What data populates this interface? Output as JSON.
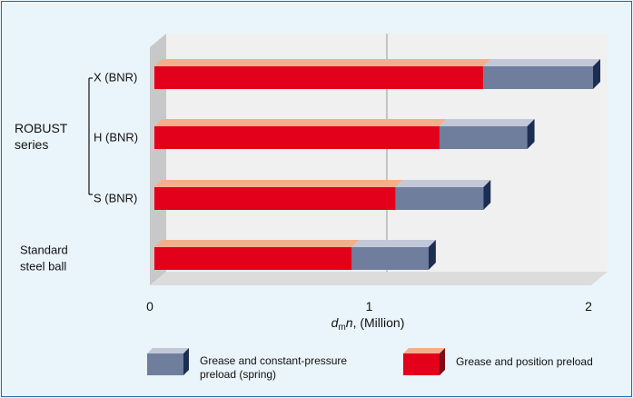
{
  "chart_data": {
    "type": "bar",
    "orientation": "horizontal",
    "stacked": true,
    "categories": [
      "X (BNR)",
      "H (BNR)",
      "S (BNR)",
      "Standard steel ball"
    ],
    "category_lines": [
      [
        "X (BNR)"
      ],
      [
        "H (BNR)"
      ],
      [
        "S (BNR)"
      ],
      [
        "Standard",
        "steel ball"
      ]
    ],
    "group_label": [
      "ROBUST",
      "series"
    ],
    "series": [
      {
        "name": "Grease and position preload",
        "values": [
          1.5,
          1.3,
          1.1,
          0.9
        ],
        "color": "#e2001a"
      },
      {
        "name": "Grease and constant-pressure preload (spring)",
        "values": [
          0.5,
          0.4,
          0.4,
          0.35
        ],
        "color": "#6f7e9c"
      }
    ],
    "xlabel_var": "d",
    "xlabel_sub": "m",
    "xlabel_var2": "n",
    "xlabel_rest": ", (Million)",
    "xlim": [
      0,
      2
    ],
    "xticks": [
      "0",
      "1",
      "2"
    ],
    "grid": "vertical at 1",
    "legend_position": "bottom",
    "legend": {
      "spring": [
        "Grease and constant-pressure",
        "preload (spring)"
      ],
      "position": [
        "Grease and position preload"
      ]
    }
  }
}
